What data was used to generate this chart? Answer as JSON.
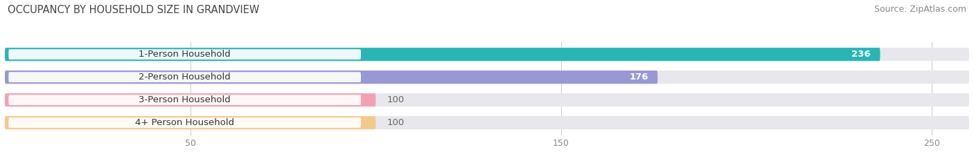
{
  "title": "OCCUPANCY BY HOUSEHOLD SIZE IN GRANDVIEW",
  "source": "Source: ZipAtlas.com",
  "categories": [
    "1-Person Household",
    "2-Person Household",
    "3-Person Household",
    "4+ Person Household"
  ],
  "values": [
    236,
    176,
    100,
    100
  ],
  "bar_colors": [
    "#29b5b5",
    "#9898d4",
    "#f4a0b4",
    "#f5c98c"
  ],
  "bar_bg_color": "#e8e8ec",
  "label_badge_color": "#ffffff",
  "xlim_max": 260,
  "xticks": [
    50,
    150,
    250
  ],
  "title_fontsize": 10.5,
  "source_fontsize": 9,
  "cat_fontsize": 9.5,
  "val_fontsize": 9.5,
  "figsize": [
    14.06,
    2.33
  ],
  "dpi": 100,
  "bg_color": "#ffffff",
  "title_color": "#444444",
  "source_color": "#888888",
  "cat_text_color": "#333333",
  "val_inside_color": "#ffffff",
  "val_outside_color": "#666666",
  "grid_color": "#cccccc"
}
